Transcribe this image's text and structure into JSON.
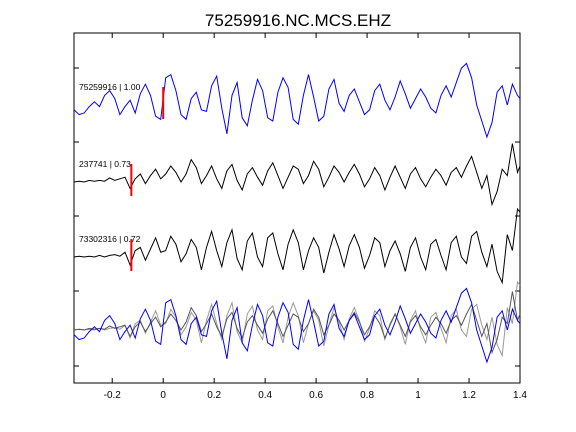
{
  "chart_data": {
    "type": "line",
    "title": "75259916.NC.MCS.EHZ",
    "xlabel": "",
    "ylabel": "",
    "xlim": [
      -0.35,
      1.4
    ],
    "xticks": [
      -0.2,
      0,
      0.2,
      0.4,
      0.6,
      0.8,
      1,
      1.2,
      1.4
    ],
    "xtick_labels": [
      "-0.2",
      "0",
      "0.2",
      "0.4",
      "0.6",
      "0.8",
      "1",
      "1.2",
      "1.4"
    ],
    "grid": false,
    "traces": [
      {
        "label": "75259916 | 1.00",
        "color": "#0000ff",
        "pick_time": 0.0,
        "x": [
          -0.35,
          -0.33,
          -0.31,
          -0.29,
          -0.27,
          -0.25,
          -0.23,
          -0.21,
          -0.19,
          -0.17,
          -0.15,
          -0.13,
          -0.11,
          -0.09,
          -0.07,
          -0.05,
          -0.03,
          -0.01,
          0.01,
          0.03,
          0.05,
          0.07,
          0.09,
          0.11,
          0.13,
          0.15,
          0.17,
          0.19,
          0.21,
          0.23,
          0.25,
          0.27,
          0.29,
          0.31,
          0.33,
          0.35,
          0.37,
          0.39,
          0.41,
          0.43,
          0.45,
          0.47,
          0.49,
          0.51,
          0.53,
          0.55,
          0.57,
          0.59,
          0.61,
          0.63,
          0.65,
          0.67,
          0.69,
          0.71,
          0.73,
          0.75,
          0.77,
          0.79,
          0.81,
          0.83,
          0.85,
          0.87,
          0.89,
          0.91,
          0.93,
          0.95,
          0.97,
          0.99,
          1.01,
          1.03,
          1.05,
          1.07,
          1.09,
          1.11,
          1.13,
          1.15,
          1.17,
          1.19,
          1.21,
          1.23,
          1.25,
          1.27,
          1.29,
          1.31,
          1.33,
          1.35,
          1.37,
          1.39,
          1.4
        ],
        "y": [
          -0.3,
          -0.6,
          -0.5,
          -0.1,
          0.2,
          -0.1,
          0.6,
          0.9,
          0.4,
          -0.6,
          -0.1,
          0.3,
          -0.5,
          0.7,
          1.3,
          0.6,
          -0.7,
          -0.9,
          1.7,
          1.9,
          0.9,
          -0.6,
          -0.9,
          0.4,
          0.8,
          -0.3,
          -0.4,
          1.2,
          1.8,
          -0.2,
          -1.8,
          0.6,
          1.4,
          -0.8,
          -1.3,
          0.3,
          1.6,
          0.9,
          -0.8,
          -1.0,
          0.8,
          1.7,
          1.1,
          -0.9,
          -1.2,
          0.6,
          1.9,
          0.5,
          -1.0,
          -0.7,
          1.0,
          1.6,
          0.1,
          -0.4,
          0.6,
          1.0,
          0.2,
          -0.6,
          -0.3,
          0.9,
          1.3,
          0.3,
          -0.3,
          0.5,
          1.5,
          0.7,
          -0.2,
          0.4,
          1.0,
          0.5,
          -0.2,
          -0.5,
          0.6,
          1.2,
          0.5,
          1.4,
          2.3,
          2.6,
          1.7,
          0.0,
          -1.0,
          -2.0,
          -1.1,
          0.8,
          1.2,
          0.0,
          1.3,
          0.6,
          0.4
        ]
      },
      {
        "label": "237741 | 0.73",
        "color": "#000000",
        "pick_time": -0.125,
        "x": [
          -0.35,
          -0.33,
          -0.31,
          -0.29,
          -0.27,
          -0.25,
          -0.23,
          -0.21,
          -0.19,
          -0.17,
          -0.15,
          -0.13,
          -0.11,
          -0.09,
          -0.07,
          -0.05,
          -0.03,
          -0.01,
          0.01,
          0.03,
          0.05,
          0.07,
          0.09,
          0.11,
          0.13,
          0.15,
          0.17,
          0.19,
          0.21,
          0.23,
          0.25,
          0.27,
          0.29,
          0.31,
          0.33,
          0.35,
          0.37,
          0.39,
          0.41,
          0.43,
          0.45,
          0.47,
          0.49,
          0.51,
          0.53,
          0.55,
          0.57,
          0.59,
          0.61,
          0.63,
          0.65,
          0.67,
          0.69,
          0.71,
          0.73,
          0.75,
          0.77,
          0.79,
          0.81,
          0.83,
          0.85,
          0.87,
          0.89,
          0.91,
          0.93,
          0.95,
          0.97,
          0.99,
          1.01,
          1.03,
          1.05,
          1.07,
          1.09,
          1.11,
          1.13,
          1.15,
          1.17,
          1.19,
          1.21,
          1.23,
          1.25,
          1.27,
          1.29,
          1.31,
          1.33,
          1.35,
          1.37,
          1.39,
          1.4
        ],
        "y": [
          0.0,
          0.05,
          0.0,
          0.1,
          0.05,
          0.1,
          0.05,
          0.25,
          0.1,
          0.2,
          0.3,
          -0.4,
          0.2,
          0.5,
          -0.1,
          0.4,
          0.8,
          0.2,
          0.5,
          1.0,
          0.6,
          0.0,
          0.5,
          1.4,
          0.9,
          -0.1,
          0.4,
          1.0,
          0.2,
          -0.4,
          0.7,
          1.1,
          0.1,
          -0.5,
          0.5,
          0.9,
          0.3,
          -0.2,
          0.7,
          1.2,
          0.4,
          -0.4,
          0.3,
          1.0,
          0.8,
          -0.1,
          0.4,
          1.3,
          0.8,
          -0.3,
          0.3,
          1.0,
          0.6,
          0.0,
          0.6,
          1.1,
          0.5,
          -0.3,
          0.2,
          0.9,
          0.4,
          -0.5,
          0.3,
          1.0,
          0.3,
          -0.4,
          0.5,
          0.9,
          0.2,
          -0.3,
          0.3,
          0.8,
          0.4,
          -0.2,
          0.6,
          0.9,
          0.3,
          1.0,
          1.6,
          0.6,
          -0.4,
          0.4,
          -1.4,
          -0.6,
          0.8,
          0.4,
          2.4,
          0.6,
          1.0
        ]
      },
      {
        "label": "73302316 | 0.72",
        "color": "#000000",
        "pick_time": -0.125,
        "x": [
          -0.35,
          -0.33,
          -0.31,
          -0.29,
          -0.27,
          -0.25,
          -0.23,
          -0.21,
          -0.19,
          -0.17,
          -0.15,
          -0.13,
          -0.11,
          -0.09,
          -0.07,
          -0.05,
          -0.03,
          -0.01,
          0.01,
          0.03,
          0.05,
          0.07,
          0.09,
          0.11,
          0.13,
          0.15,
          0.17,
          0.19,
          0.21,
          0.23,
          0.25,
          0.27,
          0.29,
          0.31,
          0.33,
          0.35,
          0.37,
          0.39,
          0.41,
          0.43,
          0.45,
          0.47,
          0.49,
          0.51,
          0.53,
          0.55,
          0.57,
          0.59,
          0.61,
          0.63,
          0.65,
          0.67,
          0.69,
          0.71,
          0.73,
          0.75,
          0.77,
          0.79,
          0.81,
          0.83,
          0.85,
          0.87,
          0.89,
          0.91,
          0.93,
          0.95,
          0.97,
          0.99,
          1.01,
          1.03,
          1.05,
          1.07,
          1.09,
          1.11,
          1.13,
          1.15,
          1.17,
          1.19,
          1.21,
          1.23,
          1.25,
          1.27,
          1.29,
          1.31,
          1.33,
          1.35,
          1.37,
          1.39,
          1.4
        ],
        "y": [
          0.0,
          0.05,
          0.0,
          0.05,
          0.0,
          0.1,
          0.0,
          0.1,
          0.15,
          0.05,
          0.3,
          -0.5,
          0.4,
          0.6,
          -0.2,
          0.5,
          1.2,
          0.3,
          0.4,
          1.3,
          0.8,
          -0.3,
          0.2,
          1.1,
          0.6,
          -0.8,
          0.6,
          1.6,
          0.4,
          -0.6,
          0.9,
          1.7,
          -0.1,
          -0.8,
          1.0,
          1.5,
          0.0,
          -0.6,
          1.2,
          1.5,
          0.2,
          -0.8,
          0.8,
          1.7,
          0.9,
          -0.8,
          0.4,
          1.2,
          0.6,
          -1.0,
          0.3,
          1.4,
          0.5,
          -0.6,
          0.7,
          1.4,
          0.6,
          -0.7,
          0.1,
          1.2,
          0.9,
          -0.6,
          0.4,
          1.0,
          0.2,
          -0.9,
          0.6,
          1.2,
          0.0,
          -0.8,
          0.8,
          1.1,
          0.1,
          -0.8,
          0.9,
          1.3,
          0.0,
          -0.4,
          1.3,
          1.6,
          0.3,
          -0.6,
          0.8,
          -0.9,
          -1.6,
          1.4,
          0.4,
          3.0,
          2.8
        ]
      }
    ],
    "overlay": {
      "description_colors": [
        "#0000ff",
        "#555555",
        "#999999"
      ],
      "series_order": [
        0,
        1,
        2
      ]
    }
  }
}
